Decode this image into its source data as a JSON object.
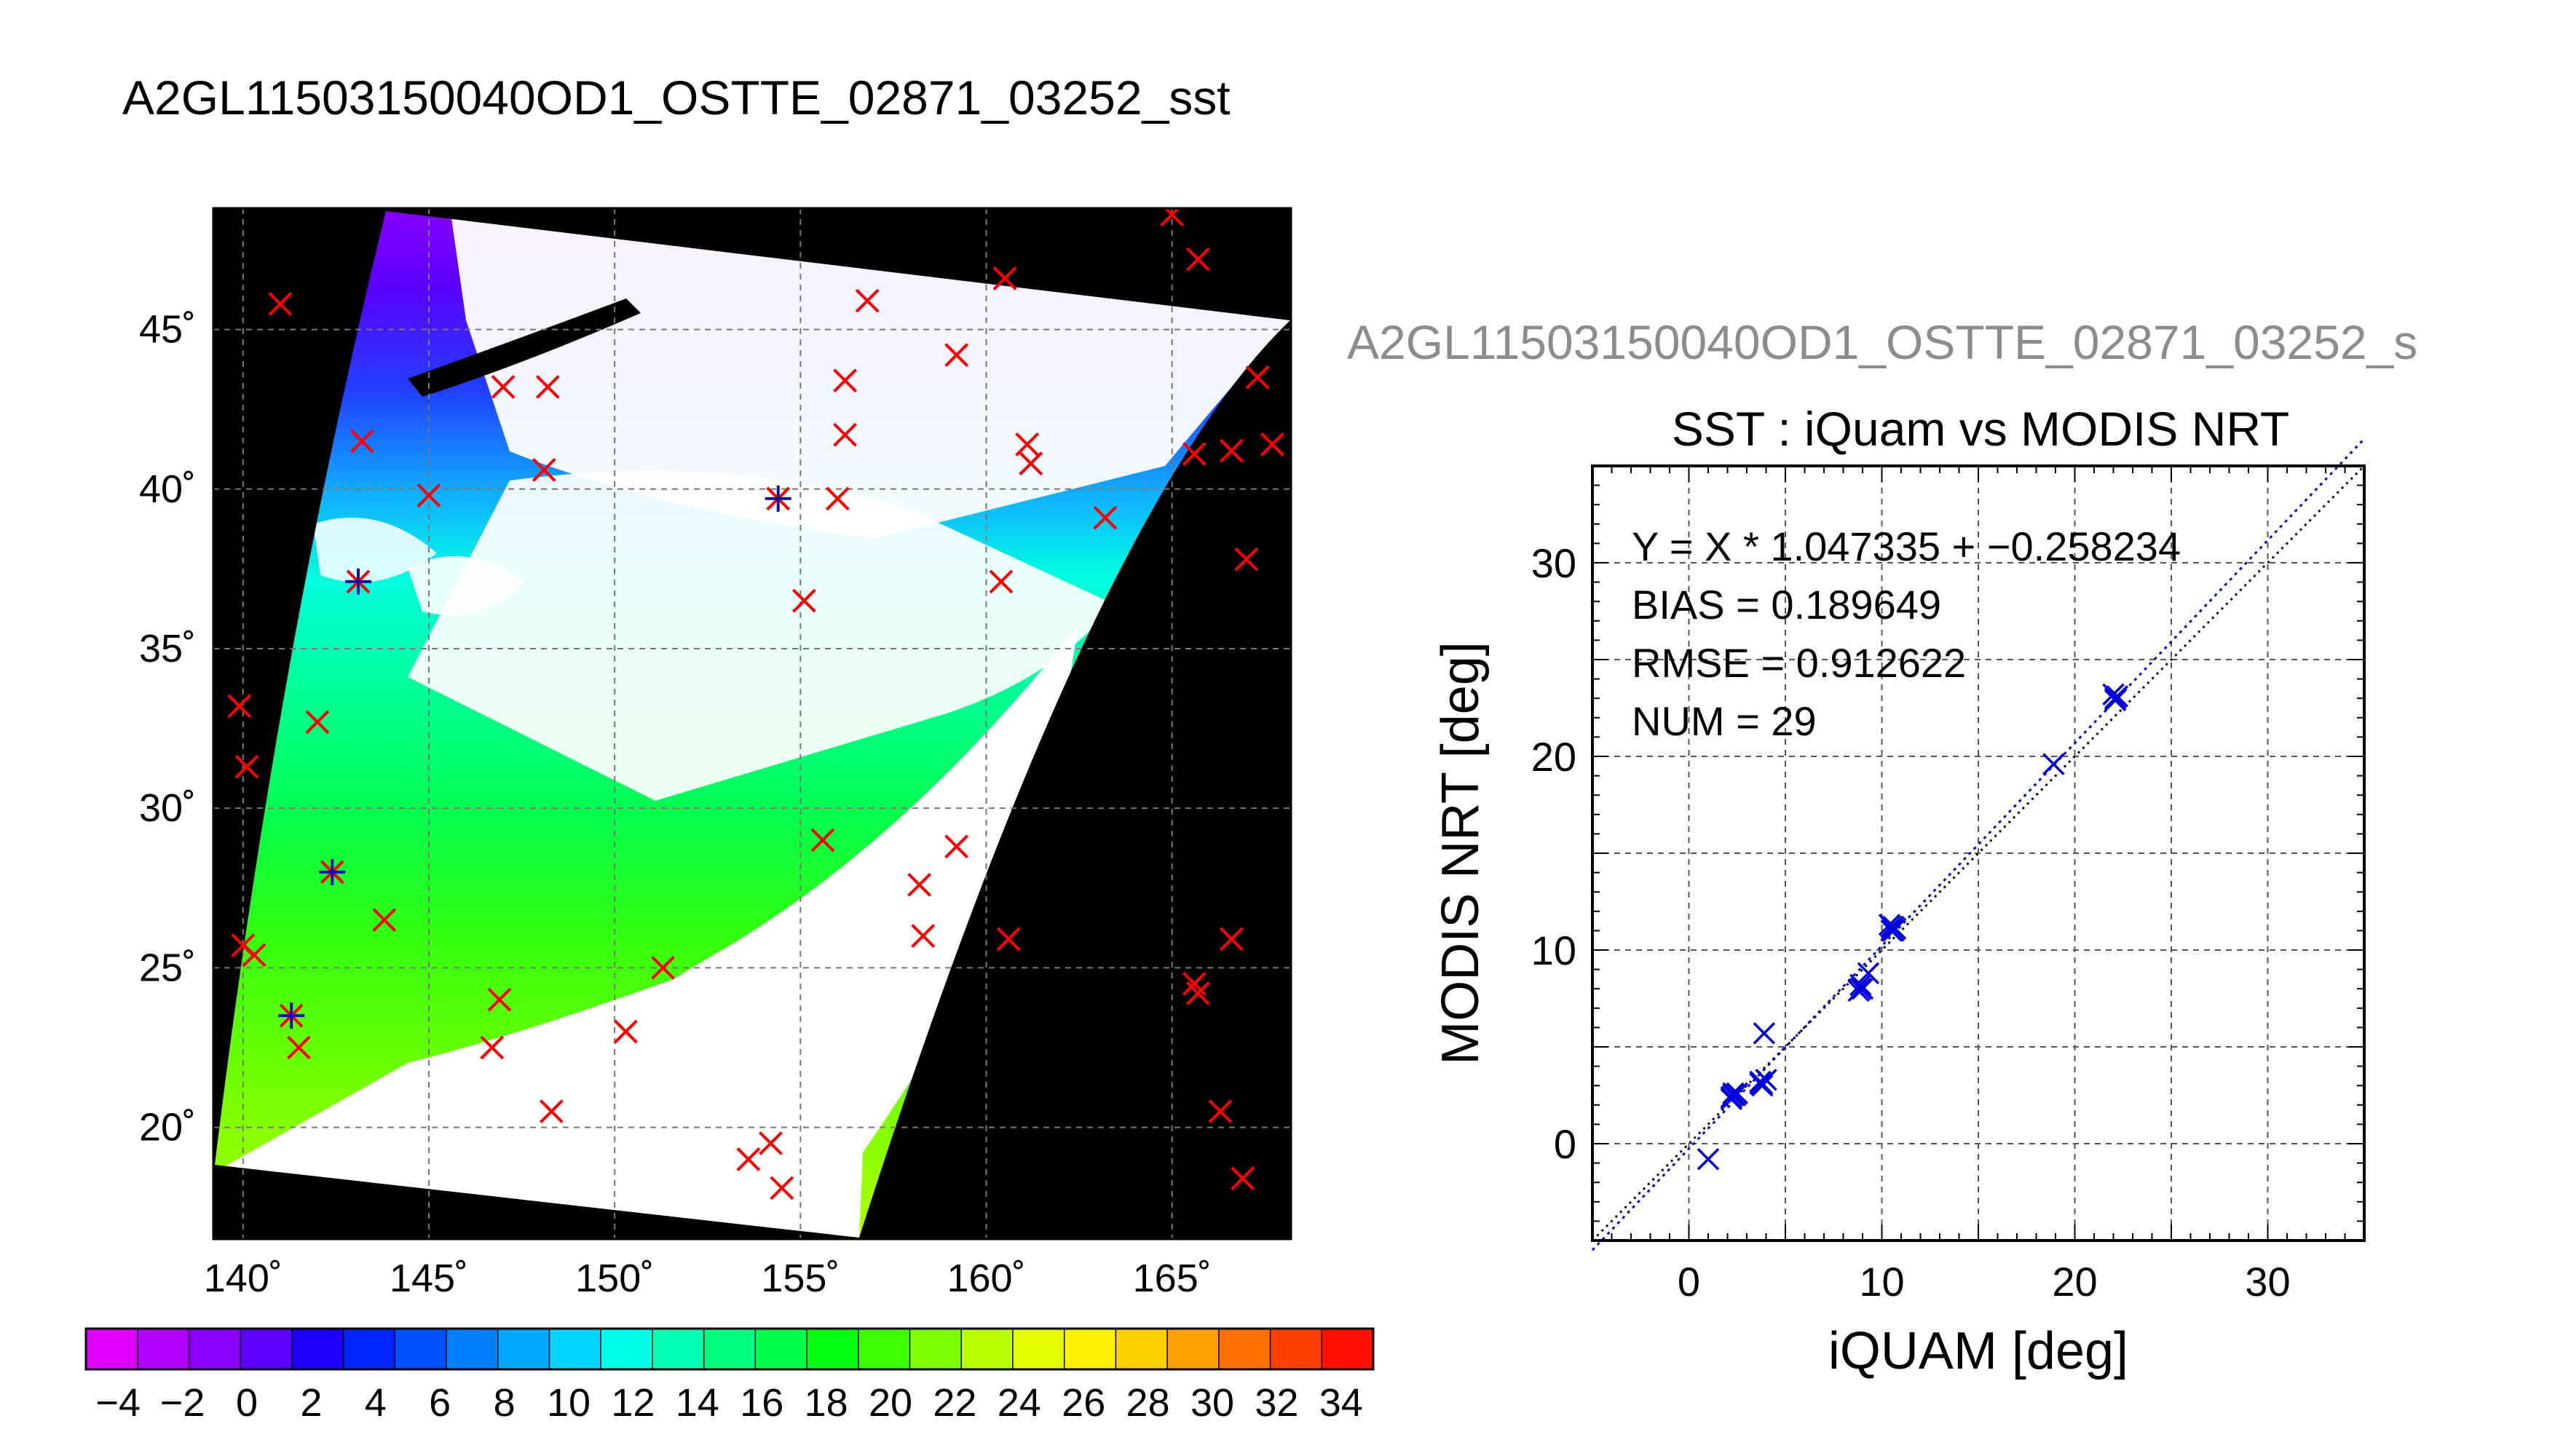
{
  "header": {
    "title": "A2GL11503150040OD1_OSTTE_02871_03252_sst",
    "scatter_title_partial": "A2GL11503150040OD1_OSTTE_02871_03252_s"
  },
  "map": {
    "lon_ticks": [
      "140˚",
      "145˚",
      "150˚",
      "155˚",
      "160˚",
      "165˚"
    ],
    "lat_ticks": [
      "45˚",
      "40˚",
      "35˚",
      "30˚",
      "25˚",
      "20˚"
    ],
    "lon_range": [
      139.2,
      168.2
    ],
    "lat_range": [
      16.5,
      48.8
    ],
    "lon_values": [
      140,
      145,
      150,
      155,
      160,
      165
    ],
    "lat_values": [
      45,
      40,
      35,
      30,
      25,
      20
    ],
    "red_markers": [
      [
        141.0,
        45.8
      ],
      [
        143.2,
        41.5
      ],
      [
        145.0,
        39.8
      ],
      [
        147.0,
        43.2
      ],
      [
        148.2,
        43.2
      ],
      [
        148.1,
        40.6
      ],
      [
        155.1,
        36.5
      ],
      [
        156.0,
        39.7
      ],
      [
        156.2,
        41.7
      ],
      [
        156.2,
        43.4
      ],
      [
        156.8,
        45.9
      ],
      [
        159.2,
        44.2
      ],
      [
        160.5,
        46.6
      ],
      [
        161.1,
        41.4
      ],
      [
        161.2,
        40.8
      ],
      [
        163.2,
        39.1
      ],
      [
        165.0,
        48.6
      ],
      [
        165.7,
        47.2
      ],
      [
        165.6,
        41.1
      ],
      [
        166.6,
        41.2
      ],
      [
        167.3,
        43.5
      ],
      [
        167.7,
        41.4
      ],
      [
        167.0,
        37.8
      ],
      [
        160.4,
        37.1
      ],
      [
        139.9,
        33.2
      ],
      [
        140.1,
        31.3
      ],
      [
        142.0,
        32.7
      ],
      [
        143.8,
        26.5
      ],
      [
        140.0,
        25.7
      ],
      [
        140.3,
        25.4
      ],
      [
        141.5,
        22.5
      ],
      [
        146.9,
        24.0
      ],
      [
        146.7,
        22.5
      ],
      [
        148.3,
        20.5
      ],
      [
        150.3,
        23.0
      ],
      [
        151.3,
        25.0
      ],
      [
        155.6,
        29.0
      ],
      [
        158.2,
        27.6
      ],
      [
        158.3,
        26.0
      ],
      [
        159.2,
        28.8
      ],
      [
        160.6,
        25.9
      ],
      [
        165.6,
        24.5
      ],
      [
        165.7,
        24.2
      ],
      [
        166.6,
        25.9
      ],
      [
        166.3,
        20.5
      ],
      [
        166.9,
        18.4
      ],
      [
        153.6,
        19.0
      ],
      [
        154.2,
        19.5
      ],
      [
        154.5,
        18.1
      ]
    ],
    "blue_markers": [
      [
        154.4,
        39.7
      ],
      [
        143.1,
        37.1
      ],
      [
        142.4,
        28.0
      ],
      [
        141.3,
        23.5
      ]
    ]
  },
  "colorbar": {
    "tick_labels": [
      "−4",
      "−2",
      "0",
      "2",
      "4",
      "6",
      "8",
      "10",
      "12",
      "14",
      "16",
      "18",
      "20",
      "22",
      "24",
      "26",
      "28",
      "30",
      "32",
      "34"
    ],
    "tick_values": [
      -4,
      -2,
      0,
      2,
      4,
      6,
      8,
      10,
      12,
      14,
      16,
      18,
      20,
      22,
      24,
      26,
      28,
      30,
      32,
      34
    ],
    "range": [
      -5,
      35
    ],
    "colors": [
      "#e000ff",
      "#b300ff",
      "#8800ff",
      "#5d00ff",
      "#1e00ff",
      "#0024ff",
      "#0050ff",
      "#0080ff",
      "#00aaff",
      "#00d4ff",
      "#00ffe6",
      "#00ffb0",
      "#00ff80",
      "#00ff4a",
      "#00ff10",
      "#3cff00",
      "#7dff00",
      "#b8ff00",
      "#e6ff00",
      "#fff000",
      "#ffd000",
      "#ffa000",
      "#ff7000",
      "#ff4000",
      "#ff1000"
    ]
  },
  "chart_data": {
    "type": "scatter",
    "title": "SST : iQuam vs MODIS NRT",
    "xlabel": "iQUAM [deg]",
    "ylabel": "MODIS NRT [deg]",
    "xlim": [
      -5,
      35
    ],
    "ylim": [
      -5,
      35
    ],
    "x_ticks": [
      0,
      10,
      20,
      30
    ],
    "y_ticks": [
      0,
      10,
      20,
      30
    ],
    "x_tick_labels": [
      "0",
      "10",
      "20",
      "30"
    ],
    "y_tick_labels": [
      "0",
      "10",
      "20",
      "30"
    ],
    "grid": true,
    "annotations": [
      "Y = X * 1.047335 + −0.258234",
      "BIAS = 0.189649",
      "RMSE = 0.912622",
      "NUM = 29"
    ],
    "fit": {
      "slope": 1.047335,
      "intercept": -0.258234
    },
    "points": [
      [
        1.0,
        -0.8
      ],
      [
        2.2,
        2.3
      ],
      [
        2.3,
        2.6
      ],
      [
        2.4,
        2.5
      ],
      [
        2.5,
        2.6
      ],
      [
        3.7,
        3.2
      ],
      [
        3.8,
        3.0
      ],
      [
        4.0,
        3.3
      ],
      [
        3.9,
        5.7
      ],
      [
        8.8,
        7.9
      ],
      [
        8.9,
        8.2
      ],
      [
        9.0,
        8.0
      ],
      [
        9.3,
        8.8
      ],
      [
        10.4,
        11.3
      ],
      [
        10.5,
        11.0
      ],
      [
        10.6,
        11.2
      ],
      [
        10.7,
        11.1
      ],
      [
        18.9,
        19.6
      ],
      [
        22.0,
        23.2
      ],
      [
        22.1,
        22.9
      ],
      [
        22.2,
        23.1
      ],
      [
        2.2,
        2.4
      ],
      [
        3.8,
        3.1
      ],
      [
        10.5,
        11.2
      ],
      [
        8.9,
        8.0
      ],
      [
        2.3,
        2.5
      ],
      [
        22.1,
        23.0
      ],
      [
        3.7,
        3.1
      ],
      [
        10.6,
        11.0
      ]
    ],
    "colors": {
      "points": "#0000dd",
      "fit_line": "#0000cc",
      "one_to_one": "#000000"
    }
  }
}
